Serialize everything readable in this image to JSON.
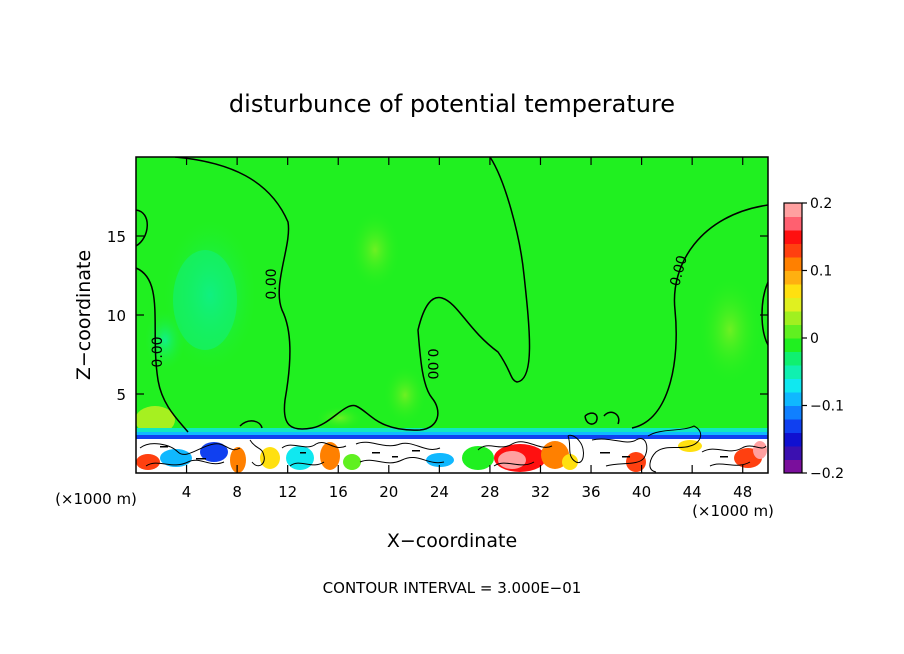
{
  "chart_data": {
    "type": "heatmap",
    "title": "disturbunce of potential temperature",
    "xlabel": "X−coordinate",
    "ylabel": "Z−coordinate",
    "x_unit_left": "(×1000 m)",
    "x_unit_right": "(×1000 m)",
    "xlim": [
      0,
      50
    ],
    "ylim": [
      0,
      20
    ],
    "x_ticks": [
      4,
      8,
      12,
      16,
      20,
      24,
      28,
      32,
      36,
      40,
      44,
      48
    ],
    "y_ticks": [
      5,
      10,
      15
    ],
    "x_tick_labels": [
      "4",
      "8",
      "12",
      "16",
      "20",
      "24",
      "28",
      "32",
      "36",
      "40",
      "44",
      "48"
    ],
    "y_tick_labels": [
      "5",
      "10",
      "15"
    ],
    "colorbar": {
      "min": -0.2,
      "max": 0.2,
      "tick_values": [
        0.2,
        0.1,
        0,
        -0.1,
        -0.2
      ],
      "tick_labels": [
        "0.2",
        "0.1",
        "0",
        "−0.1",
        "−0.2"
      ],
      "colors": [
        "#7a0f9c",
        "#3b10b0",
        "#1010d0",
        "#1040f0",
        "#1080ff",
        "#10b8ff",
        "#10e8f0",
        "#10f0b0",
        "#10f070",
        "#20f020",
        "#60f020",
        "#a0f020",
        "#e0f020",
        "#ffe010",
        "#ffb010",
        "#ff8000",
        "#ff4010",
        "#ff1010",
        "#ff6070",
        "#ffa0a0"
      ]
    },
    "contour_labels": [
      "0.00",
      "0.00",
      "0.00",
      "0.00"
    ],
    "contour_interval_text": "CONTOUR INTERVAL = 3.000E−01",
    "grid": false
  }
}
